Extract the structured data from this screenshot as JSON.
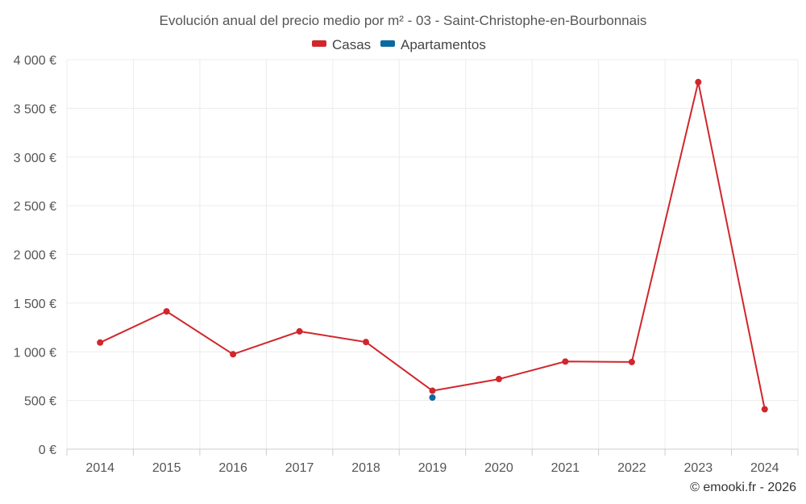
{
  "chart_data": {
    "type": "line",
    "title": "Evolución anual del precio medio por m² - 03 - Saint-Christophe-en-Bourbonnais",
    "xlabel": "",
    "ylabel": "",
    "categories": [
      "2014",
      "2015",
      "2016",
      "2017",
      "2018",
      "2019",
      "2020",
      "2021",
      "2022",
      "2023",
      "2024"
    ],
    "ylim": [
      0,
      4000
    ],
    "yticks": [
      0,
      500,
      1000,
      1500,
      2000,
      2500,
      3000,
      3500,
      4000
    ],
    "ytick_labels": [
      "0 €",
      "500 €",
      "1 000 €",
      "1 500 €",
      "2 000 €",
      "2 500 €",
      "3 000 €",
      "3 500 €",
      "4 000 €"
    ],
    "grid": true,
    "legend_position": "top-center",
    "series": [
      {
        "name": "Casas",
        "color": "#d0262c",
        "values": [
          1095,
          1415,
          975,
          1210,
          1100,
          600,
          720,
          900,
          895,
          3770,
          410
        ]
      },
      {
        "name": "Apartamentos",
        "color": "#0a6aa1",
        "values": [
          null,
          null,
          null,
          null,
          null,
          530,
          null,
          null,
          null,
          null,
          null
        ]
      }
    ],
    "credit": "© emooki.fr - 2026"
  }
}
